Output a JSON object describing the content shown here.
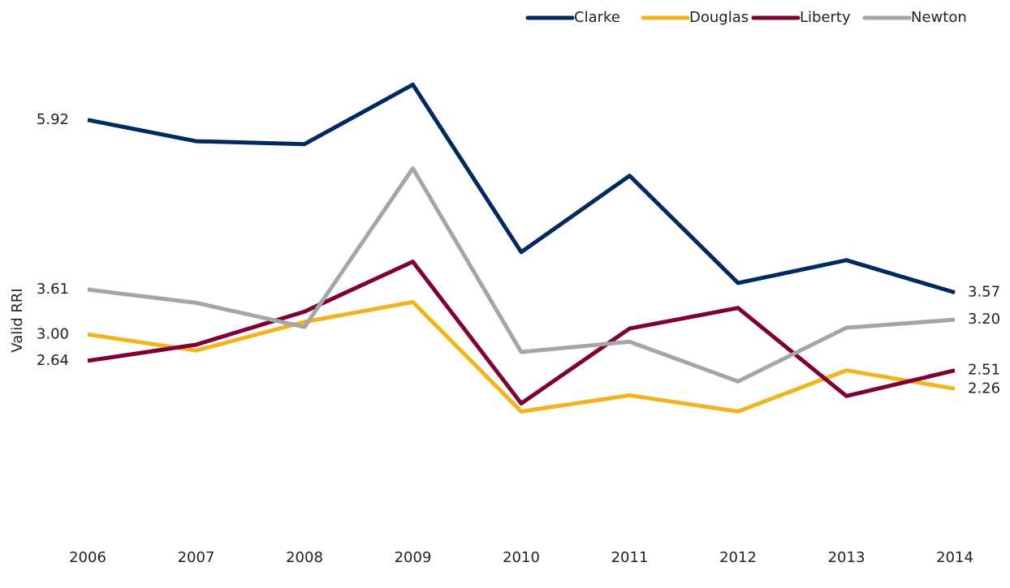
{
  "chart_data": {
    "type": "line",
    "y_label": "Valid RRI",
    "categories": [
      "2006",
      "2007",
      "2008",
      "2009",
      "2010",
      "2011",
      "2012",
      "2013",
      "2014"
    ],
    "ylim": [
      0,
      7
    ],
    "legend": "top-right",
    "series": [
      {
        "name": "Clarke",
        "color": "#002960",
        "values": [
          5.92,
          5.63,
          5.59,
          6.4,
          4.12,
          5.16,
          3.7,
          4.01,
          3.57
        ],
        "value_labels": [
          "5.92",
          null,
          null,
          null,
          null,
          null,
          null,
          null,
          "3.57"
        ]
      },
      {
        "name": "Douglas",
        "color": "#f0b41c",
        "values": [
          3.0,
          2.78,
          3.17,
          3.44,
          1.95,
          2.17,
          1.95,
          2.51,
          2.26
        ],
        "value_labels": [
          "3.00",
          null,
          null,
          null,
          null,
          null,
          null,
          null,
          "2.26"
        ]
      },
      {
        "name": "Liberty",
        "color": "#7f0036",
        "values": [
          2.64,
          2.86,
          3.31,
          3.99,
          2.06,
          3.08,
          3.36,
          2.16,
          2.51
        ],
        "value_labels": [
          "2.64",
          null,
          null,
          null,
          null,
          null,
          null,
          null,
          "2.51"
        ]
      },
      {
        "name": "Newton",
        "color": "#a5a5a8",
        "values": [
          3.61,
          3.43,
          3.1,
          5.26,
          2.76,
          2.9,
          2.36,
          3.09,
          3.2
        ],
        "value_labels": [
          "3.61",
          null,
          null,
          null,
          null,
          null,
          null,
          null,
          "3.20"
        ]
      }
    ]
  }
}
